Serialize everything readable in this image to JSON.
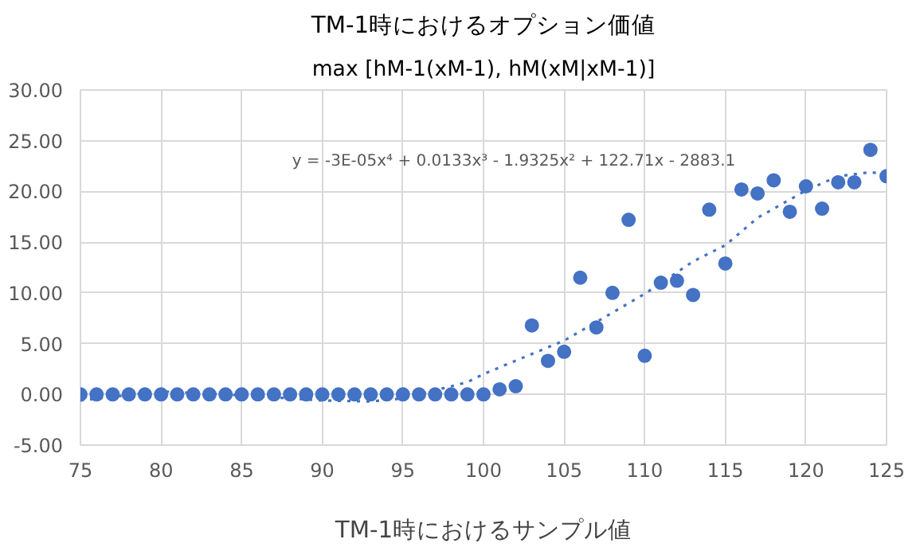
{
  "chart_data": {
    "type": "scatter",
    "title": "TM-1時におけるオプション価値",
    "subtitle": "max [hM-1(xM-1), hM(xM|xM-1)]",
    "xlabel": "TM-1時におけるサンプル値",
    "x": [
      75,
      76,
      77,
      78,
      79,
      80,
      81,
      82,
      83,
      84,
      85,
      86,
      87,
      88,
      89,
      90,
      91,
      92,
      93,
      94,
      95,
      96,
      97,
      98,
      99,
      100,
      101,
      102,
      103,
      104,
      105,
      106,
      107,
      108,
      109,
      110,
      111,
      112,
      113,
      114,
      115,
      116,
      117,
      118,
      119,
      120,
      121,
      122,
      123,
      124,
      125
    ],
    "series": [
      {
        "color": "#4472c4",
        "marker": "circle",
        "values": [
          0,
          0,
          0,
          0,
          0,
          0,
          0,
          0,
          0,
          0,
          0,
          0,
          0,
          0,
          0,
          0,
          0,
          0,
          0,
          0,
          0,
          0,
          0,
          0,
          0,
          0,
          0.5,
          0.8,
          6.8,
          3.3,
          4.2,
          11.5,
          6.6,
          10.0,
          17.2,
          3.8,
          11.0,
          11.2,
          9.8,
          18.2,
          12.9,
          20.2,
          19.8,
          21.1,
          18.0,
          20.5,
          18.3,
          20.9,
          20.9,
          24.1,
          21.5
        ]
      },
      {
        "type": "line",
        "color": "#4472c4",
        "line_style": "dotted",
        "marker": "none",
        "x": [
          75,
          80,
          85,
          90,
          93,
          95,
          97,
          99,
          100,
          105,
          110,
          113,
          115,
          117,
          120,
          122,
          124,
          125
        ],
        "values": [
          -0.6,
          0.3,
          -0.1,
          -0.6,
          -0.7,
          -0.4,
          0.4,
          1.2,
          2.0,
          5.3,
          9.9,
          13.1,
          14.7,
          17.4,
          20.1,
          21.5,
          21.9,
          21.7
        ]
      }
    ],
    "annotations": [
      "y = -3E-05x⁴ + 0.0133x³ - 1.9325x² + 122.71x - 2883.1"
    ],
    "xlim": [
      75,
      125
    ],
    "xticks": [
      75,
      80,
      85,
      90,
      95,
      100,
      105,
      110,
      115,
      120,
      125
    ],
    "ylim": [
      -5,
      30
    ],
    "yticks": [
      {
        "value": -5,
        "label": "-5.00"
      },
      {
        "value": 0,
        "label": "0.00"
      },
      {
        "value": 5,
        "label": "5.00"
      },
      {
        "value": 10,
        "label": "10.00"
      },
      {
        "value": 15,
        "label": "15.00"
      },
      {
        "value": 20,
        "label": "20.00"
      },
      {
        "value": 25,
        "label": "25.00"
      },
      {
        "value": 30,
        "label": "30.00"
      }
    ],
    "grid": true
  }
}
